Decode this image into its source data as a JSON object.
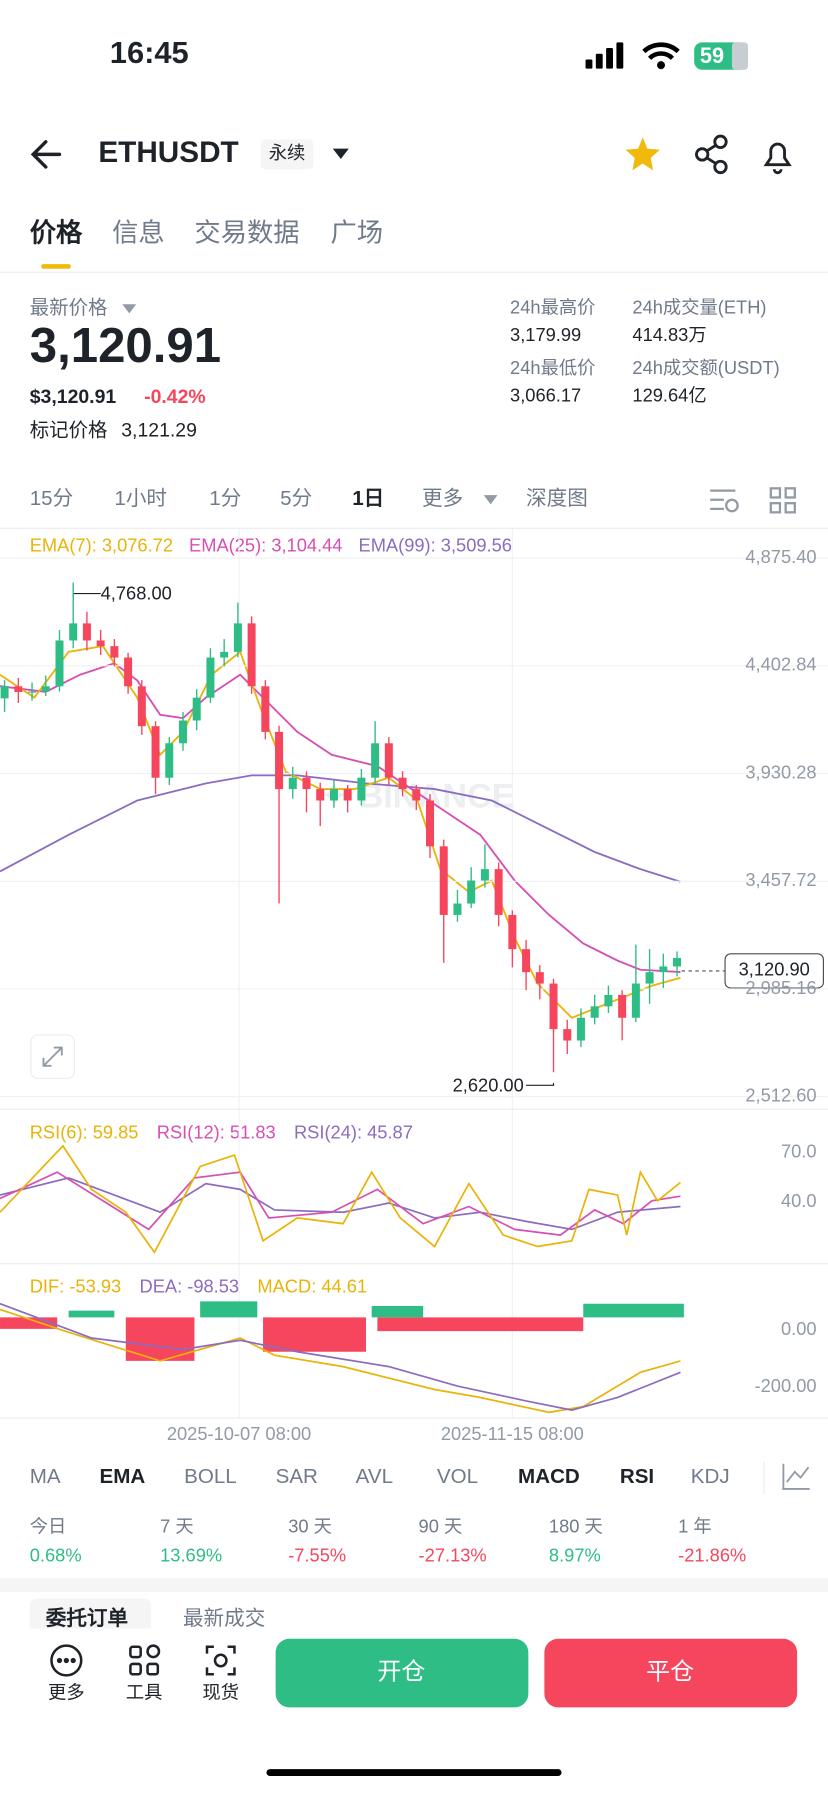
{
  "status": {
    "time": "16:45",
    "battery": "59"
  },
  "header": {
    "symbol": "ETHUSDT",
    "tag": "永续"
  },
  "tabs": [
    "价格",
    "信息",
    "交易数据",
    "广场"
  ],
  "price": {
    "label": "最新价格",
    "last": "3,120.91",
    "usd": "$3,120.91",
    "change": "-0.42%",
    "mark_label": "标记价格",
    "mark": "3,121.29"
  },
  "stats": [
    {
      "label": "24h最高价",
      "value": "3,179.99"
    },
    {
      "label": "24h成交量(ETH)",
      "value": "414.83万"
    },
    {
      "label": "24h最低价",
      "value": "3,066.17"
    },
    {
      "label": "24h成交额(USDT)",
      "value": "129.64亿"
    }
  ],
  "intervals": [
    "15分",
    "1小时",
    "1分",
    "5分",
    "1日",
    "更多",
    "深度图"
  ],
  "kline": {
    "legend": [
      {
        "text": "EMA(7): 3,076.72",
        "color": "#e9b308"
      },
      {
        "text": "EMA(25): 3,104.44",
        "color": "#d64fb4"
      },
      {
        "text": "EMA(99): 3,509.56",
        "color": "#8b6cc0"
      }
    ],
    "ylim": [
      2512.6,
      4875.4
    ],
    "yticks": [
      {
        "value": 4875.4,
        "label": "4,875.40"
      },
      {
        "value": 4402.84,
        "label": "4,402.84"
      },
      {
        "value": 3930.28,
        "label": "3,930.28"
      },
      {
        "value": 3457.72,
        "label": "3,457.72"
      },
      {
        "value": 2985.16,
        "label": "2,985.16"
      },
      {
        "value": 2512.6,
        "label": "2,512.60"
      }
    ],
    "up_color": "#2ebd85",
    "down_color": "#f6465d",
    "candles": [
      [
        4260,
        4340,
        4200,
        4313
      ],
      [
        4313,
        4350,
        4240,
        4288
      ],
      [
        4288,
        4330,
        4250,
        4290
      ],
      [
        4290,
        4360,
        4270,
        4313
      ],
      [
        4313,
        4560,
        4290,
        4514
      ],
      [
        4514,
        4768,
        4480,
        4589
      ],
      [
        4589,
        4640,
        4470,
        4514
      ],
      [
        4514,
        4560,
        4450,
        4489
      ],
      [
        4489,
        4520,
        4400,
        4439
      ],
      [
        4439,
        4460,
        4280,
        4313
      ],
      [
        4313,
        4340,
        4100,
        4138
      ],
      [
        4138,
        4160,
        3840,
        3912
      ],
      [
        3912,
        4090,
        3880,
        4063
      ],
      [
        4063,
        4200,
        4030,
        4163
      ],
      [
        4163,
        4300,
        4120,
        4263
      ],
      [
        4263,
        4480,
        4240,
        4439
      ],
      [
        4439,
        4520,
        4400,
        4464
      ],
      [
        4464,
        4680,
        4440,
        4589
      ],
      [
        4589,
        4620,
        4280,
        4313
      ],
      [
        4313,
        4340,
        4080,
        4113
      ],
      [
        4113,
        4140,
        3360,
        3862
      ],
      [
        3862,
        3960,
        3820,
        3912
      ],
      [
        3912,
        3940,
        3760,
        3862
      ],
      [
        3862,
        3890,
        3700,
        3812
      ],
      [
        3812,
        3900,
        3780,
        3862
      ],
      [
        3862,
        3880,
        3760,
        3812
      ],
      [
        3812,
        3950,
        3790,
        3912
      ],
      [
        3912,
        4160,
        3890,
        4063
      ],
      [
        4063,
        4090,
        3880,
        3912
      ],
      [
        3912,
        3940,
        3830,
        3862
      ],
      [
        3862,
        3880,
        3770,
        3812
      ],
      [
        3812,
        3840,
        3560,
        3611
      ],
      [
        3611,
        3640,
        3100,
        3310
      ],
      [
        3310,
        3420,
        3280,
        3360
      ],
      [
        3360,
        3520,
        3340,
        3461
      ],
      [
        3461,
        3620,
        3430,
        3511
      ],
      [
        3511,
        3540,
        3260,
        3310
      ],
      [
        3310,
        3330,
        3080,
        3160
      ],
      [
        3160,
        3200,
        2980,
        3059
      ],
      [
        3059,
        3090,
        2940,
        3009
      ],
      [
        3009,
        3030,
        2620,
        2809
      ],
      [
        2809,
        2850,
        2700,
        2759
      ],
      [
        2759,
        2900,
        2730,
        2859
      ],
      [
        2859,
        2960,
        2830,
        2909
      ],
      [
        2909,
        3000,
        2880,
        2959
      ],
      [
        2959,
        2980,
        2760,
        2859
      ],
      [
        2859,
        3180,
        2840,
        3009
      ],
      [
        3009,
        3160,
        2920,
        3059
      ],
      [
        3059,
        3140,
        2990,
        3084
      ],
      [
        3084,
        3150,
        3040,
        3121
      ]
    ],
    "high_label": "4,768.00",
    "low_label": "2,620.00",
    "last_label": "3,120.90",
    "x_labels": [
      "2025-10-07 08:00",
      "2025-11-15 08:00"
    ]
  },
  "rsi": {
    "legend": [
      {
        "text": "RSI(6): 59.85",
        "color": "#e9b308"
      },
      {
        "text": "RSI(12): 51.83",
        "color": "#d64fb4"
      },
      {
        "text": "RSI(24): 45.87",
        "color": "#8b6cc0"
      }
    ],
    "ticks": [
      "70.0",
      "40.0"
    ]
  },
  "macd": {
    "legend": [
      {
        "text": "DIF: -53.93",
        "color": "#e9b308"
      },
      {
        "text": "DEA: -98.53",
        "color": "#8b6cc0"
      },
      {
        "text": "MACD: 44.61",
        "color": "#e9b308"
      }
    ],
    "ticks": [
      "0.00",
      "-200.00"
    ]
  },
  "indicators": [
    "MA",
    "EMA",
    "BOLL",
    "SAR",
    "AVL",
    "VOL",
    "MACD",
    "RSI",
    "KDJ"
  ],
  "performance": [
    {
      "period": "今日",
      "change": "0.68%"
    },
    {
      "period": "7 天",
      "change": "13.69%"
    },
    {
      "period": "30 天",
      "change": "-7.55%"
    },
    {
      "period": "90 天",
      "change": "-27.13%"
    },
    {
      "period": "180 天",
      "change": "8.97%"
    },
    {
      "period": "1 年",
      "change": "-21.86%"
    }
  ],
  "orders_tabs": [
    "委托订单",
    "最新成交"
  ],
  "bottom_nav": [
    "更多",
    "工具",
    "现货"
  ],
  "actions": {
    "open": "开仓",
    "close": "平仓"
  }
}
